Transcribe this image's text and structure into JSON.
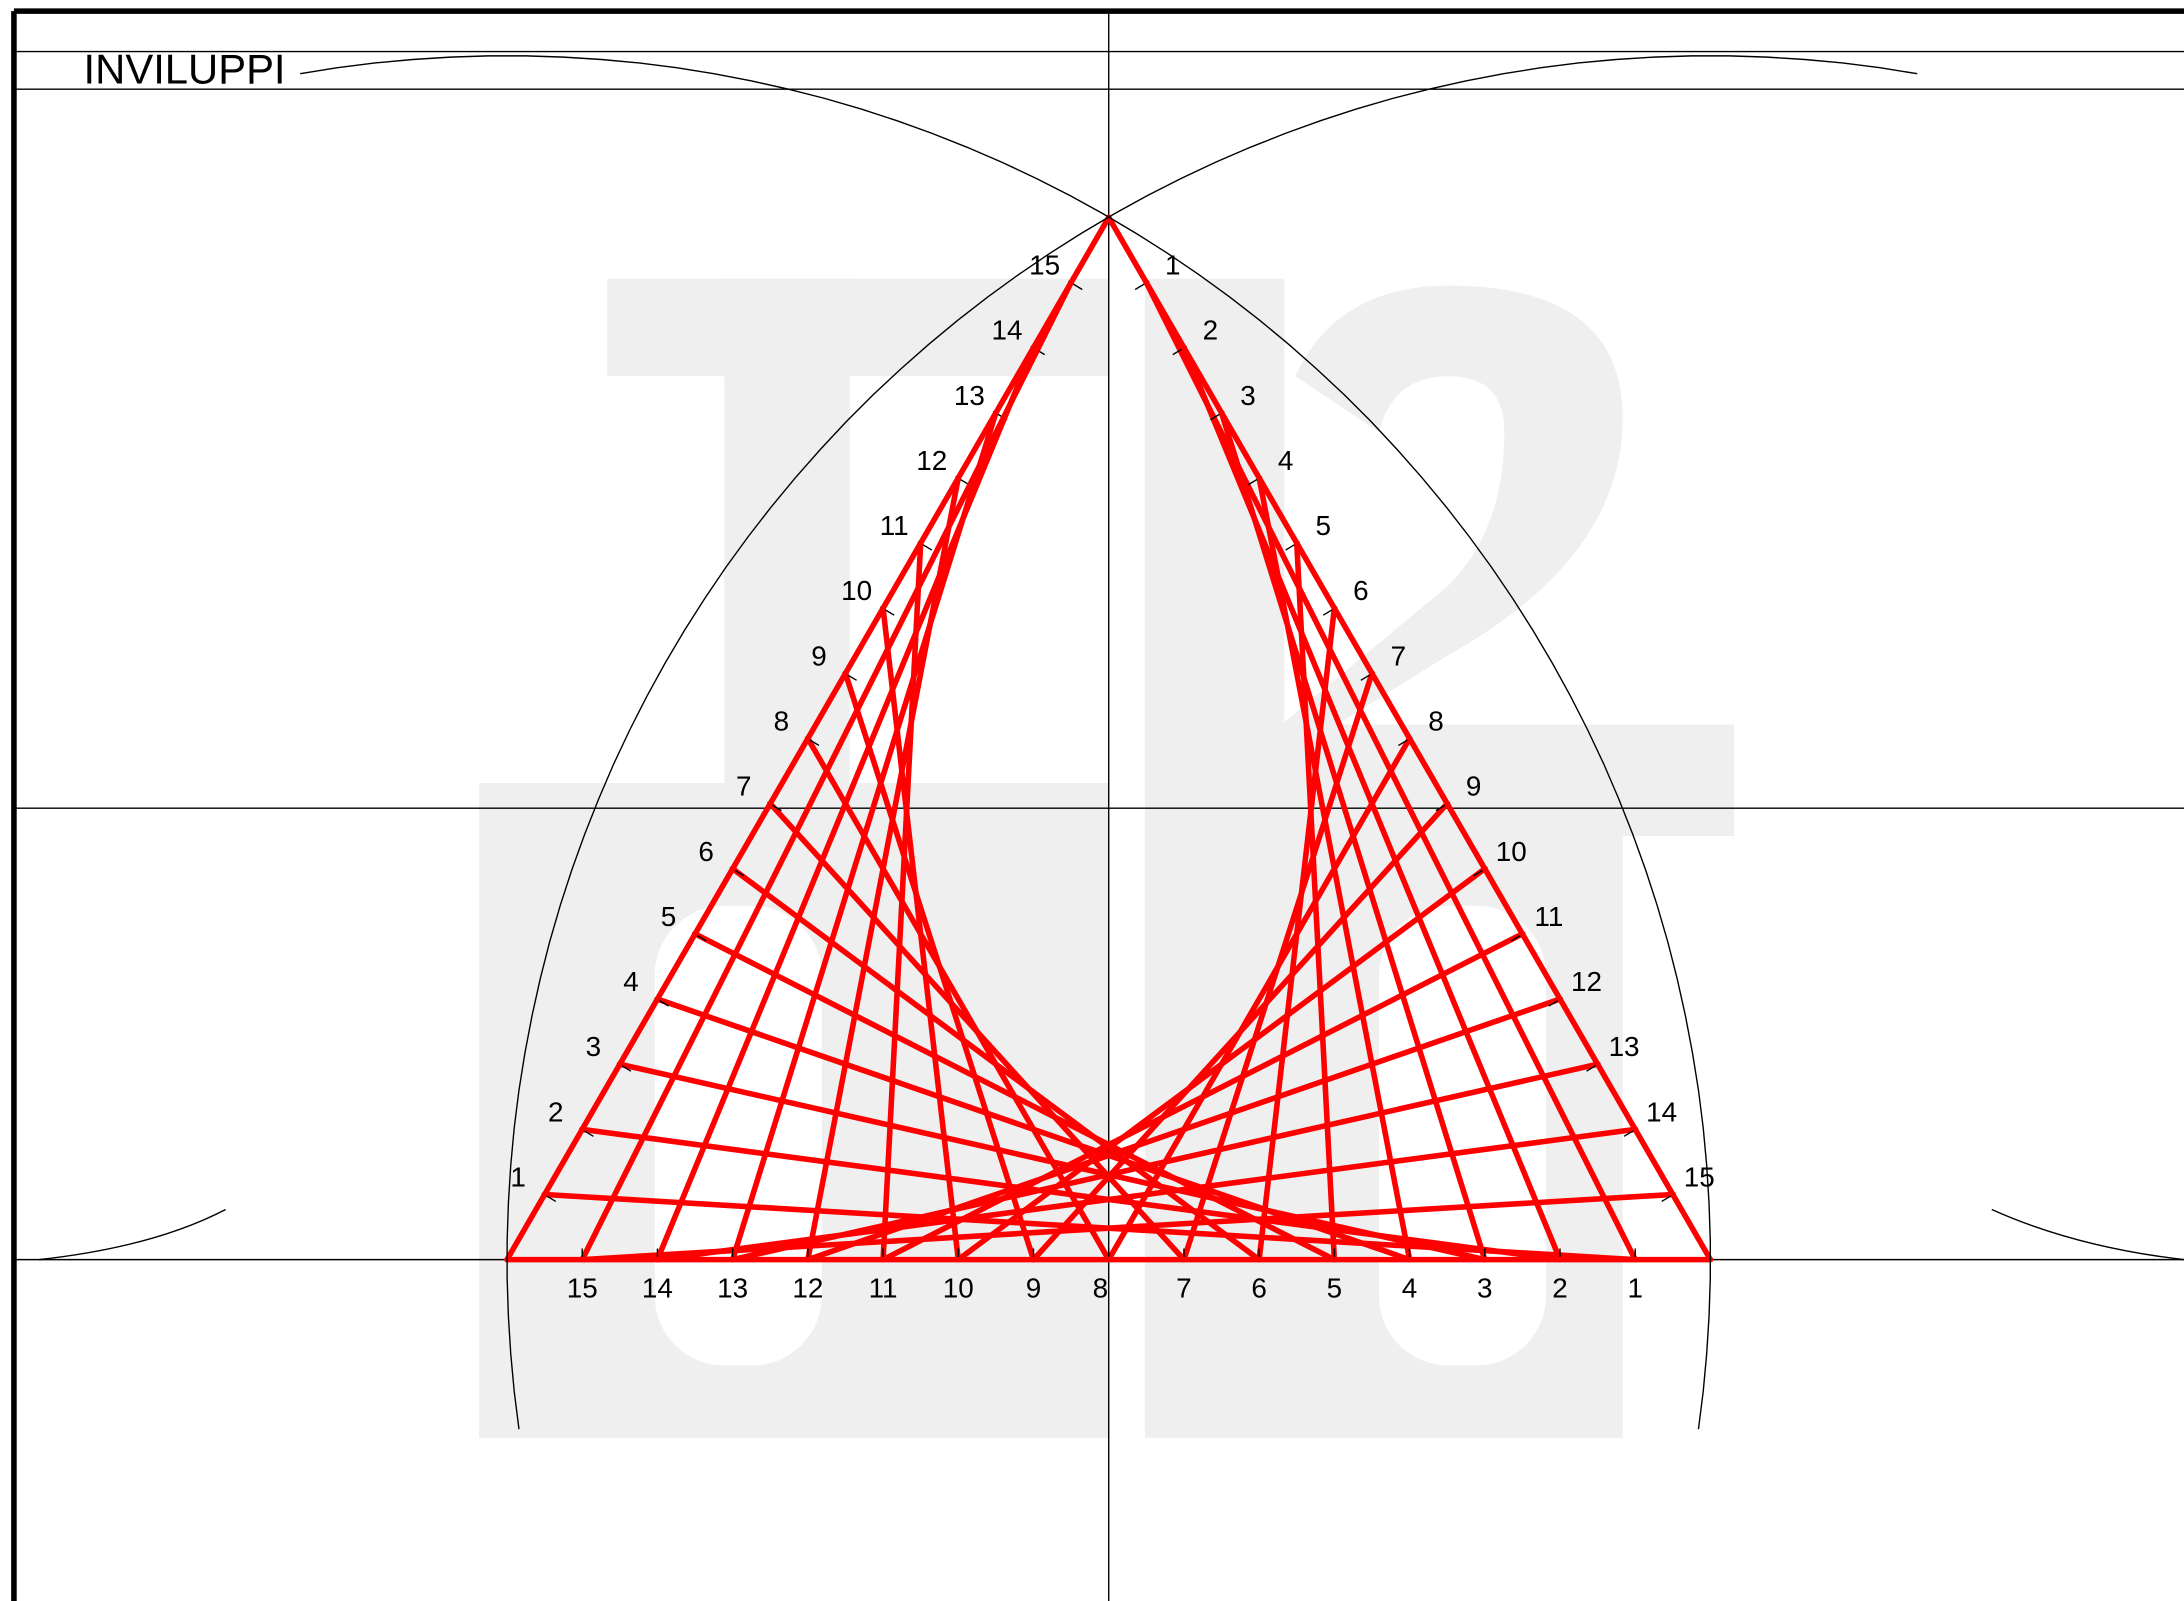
{
  "header": {
    "title": "INVILUPPI"
  },
  "left_labels": [
    1,
    2,
    3,
    4,
    5,
    6,
    7,
    8,
    9,
    10,
    11,
    12,
    13,
    14,
    15
  ],
  "right_labels": [
    1,
    2,
    3,
    4,
    5,
    6,
    7,
    8,
    9,
    10,
    11,
    12,
    13,
    14,
    15
  ],
  "base_labels": [
    15,
    14,
    13,
    12,
    11,
    10,
    9,
    8,
    7,
    6,
    5,
    4,
    3,
    2,
    1
  ]
}
